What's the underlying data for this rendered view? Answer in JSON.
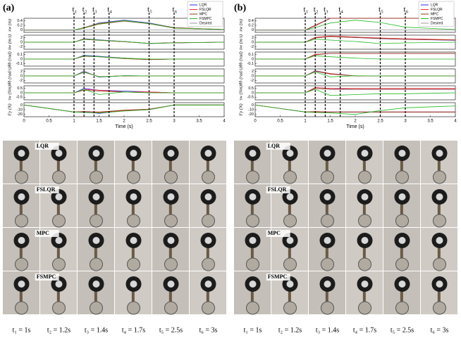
{
  "panels": [
    {
      "label": "(a)",
      "xlabel": "Time (s)",
      "xlim": [
        0,
        4
      ],
      "xticks": [
        0,
        0.5,
        1,
        1.5,
        2,
        2.5,
        3,
        3.5,
        4
      ],
      "x": [
        0,
        1,
        1.2,
        1.5,
        2,
        2.5,
        3,
        4
      ],
      "events": [
        {
          "label": "t₁",
          "value": 1
        },
        {
          "label": "t₂",
          "value": 1.2
        },
        {
          "label": "t₃",
          "value": 1.4
        },
        {
          "label": "t₄",
          "value": 1.7
        },
        {
          "label": "t₅",
          "value": 2.5
        },
        {
          "label": "t₆",
          "value": 3
        }
      ],
      "subplots": [
        {
          "ylabel": "xw (m)",
          "ylim": [
            -0.1,
            0.5
          ],
          "yticks": [
            0,
            0.2,
            0.4
          ],
          "series": [
            {
              "name": "LQR",
              "color": "#2a2aff",
              "values": [
                0,
                0,
                0.1,
                0.3,
                0.42,
                0.3,
                0.1,
                0.02
              ]
            },
            {
              "name": "FSLQR",
              "color": "#ff2a2a",
              "values": [
                0,
                0,
                0.1,
                0.28,
                0.4,
                0.28,
                0.1,
                0.02
              ]
            },
            {
              "name": "MPC",
              "color": "#8b3a1a",
              "values": [
                0,
                0,
                0.08,
                0.25,
                0.38,
                0.27,
                0.08,
                0.02
              ]
            },
            {
              "name": "FSMPC",
              "color": "#22bb22",
              "values": [
                0,
                0,
                0.09,
                0.27,
                0.4,
                0.28,
                0.09,
                0.02
              ]
            },
            {
              "name": "Desired",
              "color": "#999999",
              "values": [
                0,
                0,
                0,
                0,
                0,
                0,
                0,
                0
              ]
            }
          ]
        },
        {
          "ylabel": "ẋw (m/s)",
          "ylim": [
            -3,
            3
          ],
          "yticks": [
            -2,
            0,
            2
          ],
          "series": [
            {
              "name": "LQR",
              "color": "#2a2aff",
              "values": [
                0,
                0,
                1.5,
                1,
                0.3,
                -0.6,
                -0.3,
                0
              ]
            },
            {
              "name": "FSLQR",
              "color": "#ff2a2a",
              "values": [
                0,
                0,
                1.4,
                0.9,
                0.2,
                -0.5,
                -0.3,
                0
              ]
            },
            {
              "name": "MPC",
              "color": "#8b3a1a",
              "values": [
                0,
                0,
                1.2,
                0.8,
                0.2,
                -0.5,
                -0.2,
                0
              ]
            },
            {
              "name": "FSMPC",
              "color": "#22bb22",
              "values": [
                0,
                0,
                1.3,
                0.9,
                0.3,
                -0.5,
                -0.3,
                0
              ]
            }
          ]
        },
        {
          "ylabel": "θb (rad)",
          "ylim": [
            -0.15,
            0.15
          ],
          "yticks": [
            -0.1,
            0,
            0.1
          ],
          "series": [
            {
              "name": "LQR",
              "color": "#2a2aff",
              "values": [
                0,
                0,
                0.08,
                0.06,
                0.02,
                -0.01,
                0,
                0
              ]
            },
            {
              "name": "FSLQR",
              "color": "#ff2a2a",
              "values": [
                0,
                0,
                0.07,
                0.05,
                0.02,
                -0.01,
                0,
                0
              ]
            },
            {
              "name": "MPC",
              "color": "#8b3a1a",
              "values": [
                0,
                0,
                0.06,
                0.05,
                0.01,
                -0.01,
                0,
                0
              ]
            },
            {
              "name": "FSMPC",
              "color": "#22bb22",
              "values": [
                0,
                0,
                0.07,
                0.05,
                0.02,
                0,
                0,
                0
              ]
            }
          ]
        },
        {
          "ylabel": "θ̇b (rad/s)",
          "ylim": [
            -3,
            3
          ],
          "yticks": [
            -2,
            0,
            2
          ],
          "series": [
            {
              "name": "LQR",
              "color": "#2a2aff",
              "values": [
                0,
                0,
                2,
                -0.5,
                0.1,
                0,
                0,
                0
              ]
            },
            {
              "name": "FSLQR",
              "color": "#ff2a2a",
              "values": [
                0,
                0,
                1.8,
                -0.4,
                0.1,
                0,
                0,
                0
              ]
            },
            {
              "name": "MPC",
              "color": "#8b3a1a",
              "values": [
                0,
                0,
                1.6,
                -0.3,
                0,
                0,
                0,
                0
              ]
            },
            {
              "name": "FSMPC",
              "color": "#22bb22",
              "values": [
                0,
                0,
                1.7,
                -0.4,
                0.1,
                0,
                0,
                0
              ]
            }
          ]
        },
        {
          "ylabel": "τw (Nm)",
          "ylim": [
            -0.8,
            0.8
          ],
          "yticks": [
            -0.5,
            0,
            0.5
          ],
          "series": [
            {
              "name": "LQR",
              "color": "#2a2aff",
              "values": [
                0,
                0,
                0.5,
                0.3,
                0.2,
                0.1,
                0,
                0
              ]
            },
            {
              "name": "FSLQR",
              "color": "#ff2a2a",
              "values": [
                0,
                0,
                0.4,
                0.3,
                0.1,
                0.1,
                0,
                0
              ]
            },
            {
              "name": "MPC",
              "color": "#8b3a1a",
              "values": [
                0,
                0,
                0.3,
                0.2,
                0.1,
                0,
                0,
                0
              ]
            },
            {
              "name": "FSMPC",
              "color": "#22bb22",
              "values": [
                0,
                0,
                0.4,
                -0.2,
                0.1,
                0,
                0,
                0
              ]
            }
          ]
        },
        {
          "ylabel": "Fy (N)",
          "ylim": [
            -25,
            5
          ],
          "yticks": [
            -20,
            -10,
            0
          ],
          "series": [
            {
              "name": "LQR",
              "color": "#2a2aff",
              "values": [
                0,
                -15,
                -15,
                -18,
                -12,
                -10,
                0,
                0
              ]
            },
            {
              "name": "FSLQR",
              "color": "#ff2a2a",
              "values": [
                0,
                -15,
                -14,
                -16,
                -12,
                -10,
                0,
                0
              ]
            },
            {
              "name": "MPC",
              "color": "#8b3a1a",
              "values": [
                0,
                -15,
                -14,
                -15,
                -11,
                -9,
                0,
                0
              ]
            },
            {
              "name": "FSMPC",
              "color": "#22bb22",
              "values": [
                0,
                -15,
                -16,
                -17,
                -13,
                -10,
                0,
                0
              ]
            }
          ]
        }
      ],
      "photo_rows": [
        "LQR",
        "FSLQR",
        "MPC",
        "FSMPC"
      ],
      "captions": [
        "t₁ = 1s",
        "t₂ = 1.2s",
        "t₃ = 1.4s",
        "t₄ = 1.7s",
        "t₅ = 2.5s",
        "t₆ = 3s"
      ]
    },
    {
      "label": "(b)",
      "xlabel": "Time (s)",
      "xlim": [
        0,
        4
      ],
      "xticks": [
        0,
        0.5,
        1,
        1.5,
        2,
        2.5,
        3,
        3.5,
        4
      ],
      "x": [
        0,
        1,
        1.2,
        1.5,
        2,
        2.5,
        3,
        4
      ],
      "events": [
        {
          "label": "t₁",
          "value": 1
        },
        {
          "label": "t₂",
          "value": 1.2
        },
        {
          "label": "t₃",
          "value": 1.4
        },
        {
          "label": "t₄",
          "value": 1.7
        },
        {
          "label": "t₅",
          "value": 2.5
        },
        {
          "label": "t₆",
          "value": 3
        }
      ],
      "subplots": [
        {
          "ylabel": "xw (m)",
          "ylim": [
            -0.1,
            0.5
          ],
          "yticks": [
            0,
            0.2,
            0.4
          ],
          "series": [
            {
              "name": "LQR",
              "color": "#2a2aff",
              "values": [
                0,
                0,
                0.2,
                0.5,
                0.5,
                0.5,
                0.5,
                0.5
              ]
            },
            {
              "name": "FSLQR",
              "color": "#ff2a2a",
              "values": [
                0,
                0,
                0.2,
                0.5,
                0.5,
                0.5,
                0.5,
                0.5
              ]
            },
            {
              "name": "MPC",
              "color": "#8b3a1a",
              "values": [
                0,
                0,
                0.18,
                0.5,
                0.5,
                0.5,
                0.5,
                0.5
              ]
            },
            {
              "name": "FSMPC",
              "color": "#22bb22",
              "values": [
                0,
                0,
                0.1,
                0.3,
                0.42,
                0.32,
                0.12,
                0.02
              ]
            },
            {
              "name": "Desired",
              "color": "#999999",
              "values": [
                0,
                0,
                0,
                0,
                0,
                0,
                0,
                0
              ]
            }
          ]
        },
        {
          "ylabel": "ẋw (m/s)",
          "ylim": [
            -3,
            3
          ],
          "yticks": [
            -2,
            0,
            2
          ],
          "series": [
            {
              "name": "LQR",
              "color": "#2a2aff",
              "values": [
                0,
                0,
                2,
                2.5,
                2,
                1.5,
                1.2,
                0.8
              ]
            },
            {
              "name": "FSLQR",
              "color": "#ff2a2a",
              "values": [
                0,
                0,
                2,
                2.6,
                2.2,
                1.8,
                1.5,
                1
              ]
            },
            {
              "name": "MPC",
              "color": "#8b3a1a",
              "values": [
                0,
                0,
                1.8,
                2.4,
                2,
                1.6,
                1.2,
                0.9
              ]
            },
            {
              "name": "FSMPC",
              "color": "#22bb22",
              "values": [
                0,
                0,
                1.3,
                0.9,
                0.3,
                -0.6,
                -0.3,
                0
              ]
            }
          ]
        },
        {
          "ylabel": "θb (rad)",
          "ylim": [
            -0.15,
            0.15
          ],
          "yticks": [
            -0.1,
            0,
            0.1
          ],
          "series": [
            {
              "name": "LQR",
              "color": "#2a2aff",
              "values": [
                0,
                0,
                0.1,
                0.12,
                0.12,
                0.12,
                0.12,
                0.12
              ]
            },
            {
              "name": "FSLQR",
              "color": "#ff2a2a",
              "values": [
                0,
                0,
                0.1,
                0.12,
                0.12,
                0.12,
                0.12,
                0.12
              ]
            },
            {
              "name": "MPC",
              "color": "#8b3a1a",
              "values": [
                0,
                0,
                0.09,
                0.12,
                0.12,
                0.12,
                0.12,
                0.12
              ]
            },
            {
              "name": "FSMPC",
              "color": "#22bb22",
              "values": [
                0,
                0,
                0.07,
                0.05,
                0.02,
                0,
                0,
                0
              ]
            }
          ]
        },
        {
          "ylabel": "θ̇b (rad/s)",
          "ylim": [
            -3,
            3
          ],
          "yticks": [
            -2,
            0,
            2
          ],
          "series": [
            {
              "name": "LQR",
              "color": "#2a2aff",
              "values": [
                0,
                0,
                2.2,
                1,
                0,
                0,
                0,
                0
              ]
            },
            {
              "name": "FSLQR",
              "color": "#ff2a2a",
              "values": [
                0,
                0,
                2.1,
                1,
                0,
                0,
                0,
                0
              ]
            },
            {
              "name": "MPC",
              "color": "#8b3a1a",
              "values": [
                0,
                0,
                2,
                0.8,
                0,
                0,
                0,
                0
              ]
            },
            {
              "name": "FSMPC",
              "color": "#22bb22",
              "values": [
                0,
                0,
                1.7,
                -0.4,
                0.1,
                0,
                0,
                0
              ]
            }
          ]
        },
        {
          "ylabel": "τw (Nm)",
          "ylim": [
            -0.8,
            0.8
          ],
          "yticks": [
            -0.5,
            0,
            0.5
          ],
          "series": [
            {
              "name": "LQR",
              "color": "#2a2aff",
              "values": [
                0,
                0,
                0.6,
                0.5,
                0.4,
                0.4,
                0.4,
                0.4
              ]
            },
            {
              "name": "FSLQR",
              "color": "#ff2a2a",
              "values": [
                0,
                0,
                0.6,
                0.5,
                0.5,
                0.5,
                0.5,
                0.5
              ]
            },
            {
              "name": "MPC",
              "color": "#8b3a1a",
              "values": [
                0,
                0,
                0.5,
                0.4,
                0.4,
                0.4,
                0.4,
                0.4
              ]
            },
            {
              "name": "FSMPC",
              "color": "#22bb22",
              "values": [
                0,
                0,
                0.4,
                -0.3,
                -0.2,
                -0.1,
                -0.1,
                0
              ]
            }
          ]
        },
        {
          "ylabel": "Fy (N)",
          "ylim": [
            -25,
            5
          ],
          "yticks": [
            -20,
            -10,
            0
          ],
          "series": [
            {
              "name": "LQR",
              "color": "#2a2aff",
              "values": [
                0,
                -15,
                -15,
                -15,
                -15,
                -15,
                -15,
                -15
              ]
            },
            {
              "name": "FSLQR",
              "color": "#ff2a2a",
              "values": [
                0,
                -15,
                -15,
                -15,
                -15,
                -15,
                -15,
                -15
              ]
            },
            {
              "name": "MPC",
              "color": "#8b3a1a",
              "values": [
                0,
                -15,
                -14,
                -15,
                -15,
                -15,
                -15,
                -15
              ]
            },
            {
              "name": "FSMPC",
              "color": "#22bb22",
              "values": [
                0,
                -15,
                -16,
                -17,
                -20,
                -12,
                -6,
                -2
              ]
            }
          ]
        }
      ],
      "photo_rows": [
        "LQR",
        "FSLQR",
        "MPC",
        "FSMPC"
      ],
      "captions": [
        "t₁ = 1s",
        "t₂ = 1.2s",
        "t₃ = 1.4s",
        "t₄ = 1.7s",
        "t₅ = 2.5s",
        "t₆ = 3s"
      ]
    }
  ]
}
